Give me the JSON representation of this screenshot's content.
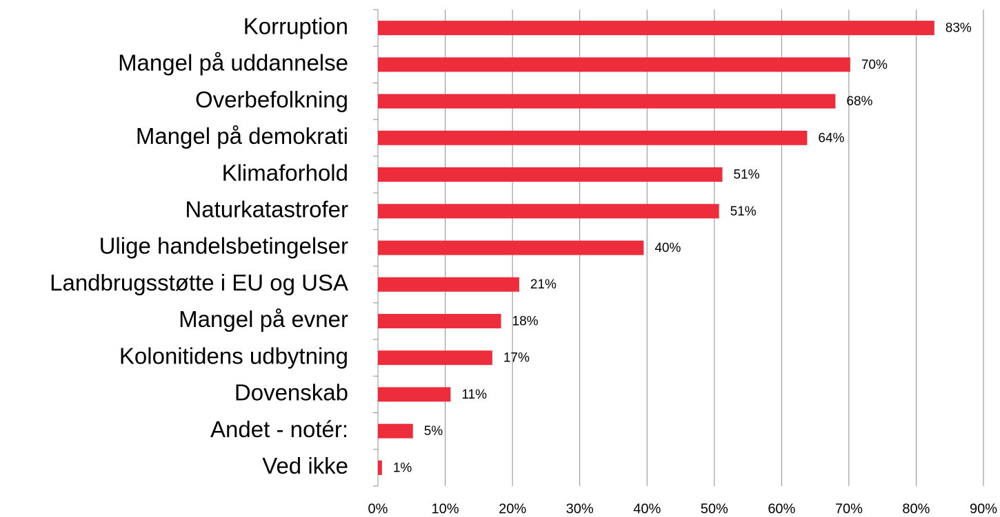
{
  "chart_data": {
    "type": "bar",
    "orientation": "horizontal",
    "categories": [
      "Korruption",
      "Mangel på uddannelse",
      "Overbefolkning",
      "Mangel på demokrati",
      "Klimaforhold",
      "Naturkatastrofer",
      "Ulige handelsbetingelser",
      "Landbrugsstøtte i EU og USA",
      "Mangel på evner",
      "Kolonitidens udbytning",
      "Dovenskab",
      "Andet - notér:",
      "Ved ikke"
    ],
    "values": [
      82.7,
      70.2,
      68.0,
      63.8,
      51.2,
      50.7,
      39.5,
      21.0,
      18.3,
      17.0,
      10.8,
      5.2,
      0.6
    ],
    "value_labels": [
      "83%",
      "70%",
      "68%",
      "64%",
      "51%",
      "51%",
      "40%",
      "21%",
      "18%",
      "17%",
      "11%",
      "5%",
      "1%"
    ],
    "color": "#ee2d3c",
    "xlim": [
      0,
      90
    ],
    "xticks": [
      {
        "value": 0,
        "label": "0%"
      },
      {
        "value": 10,
        "label": "10%"
      },
      {
        "value": 20,
        "label": "20%"
      },
      {
        "value": 30,
        "label": "30%"
      },
      {
        "value": 40,
        "label": "40%"
      },
      {
        "value": 50,
        "label": "50%"
      },
      {
        "value": 60,
        "label": "60%"
      },
      {
        "value": 70,
        "label": "70%"
      },
      {
        "value": 80,
        "label": "80%"
      },
      {
        "value": 90,
        "label": "90%"
      }
    ],
    "grid": true
  }
}
